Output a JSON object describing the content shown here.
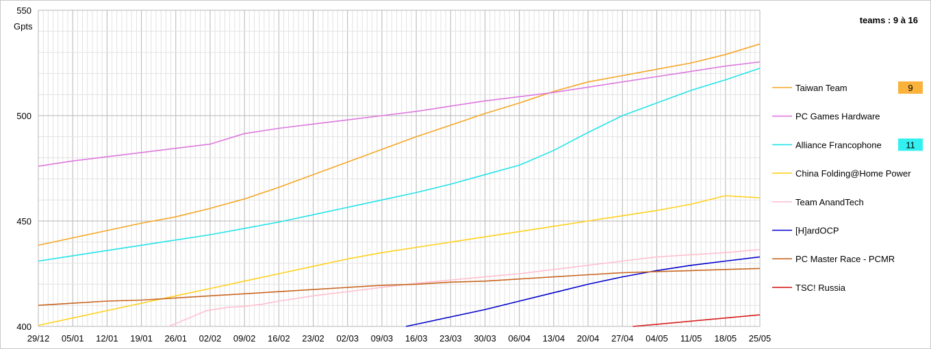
{
  "chart_data": {
    "type": "line",
    "title": "",
    "ylabel": "Gpts",
    "ylim": [
      400,
      550
    ],
    "yticks": [
      400,
      450,
      500,
      550
    ],
    "grid": true,
    "legend_position": "right",
    "x_tick_labels": [
      "29/12",
      "05/01",
      "12/01",
      "19/01",
      "26/01",
      "02/02",
      "09/02",
      "16/02",
      "23/02",
      "02/03",
      "09/03",
      "16/03",
      "23/03",
      "30/03",
      "06/04",
      "13/04",
      "20/04",
      "27/04",
      "04/05",
      "11/05",
      "18/05",
      "25/05"
    ],
    "ranking_label": "teams : 9 à 16",
    "series": [
      {
        "name": "Taiwan Team",
        "color": "#f5a623",
        "rank": "9",
        "badge_color": "#f9b23b",
        "x": [
          0,
          1,
          2,
          3,
          4,
          5,
          6,
          7,
          8,
          9,
          10,
          11,
          12,
          13,
          14,
          15,
          16,
          17,
          18,
          19,
          20,
          21
        ],
        "y": [
          438.5,
          442,
          445.5,
          449,
          452,
          456,
          460.5,
          466,
          472,
          478,
          484,
          490,
          495.5,
          501,
          506,
          511.5,
          516,
          519,
          522,
          525,
          529,
          534
        ]
      },
      {
        "name": "PC Games Hardware",
        "color": "#dd77dd",
        "x": [
          0,
          1,
          2,
          3,
          4,
          5,
          6,
          7,
          8,
          9,
          10,
          11,
          12,
          13,
          14,
          15,
          16,
          17,
          18,
          19,
          20,
          21
        ],
        "y": [
          476,
          478.5,
          480.5,
          482.5,
          484.5,
          486.5,
          491.5,
          494,
          496,
          498,
          500,
          502,
          504.5,
          507,
          509,
          511,
          513.5,
          516,
          518.5,
          521,
          523.5,
          525.5
        ]
      },
      {
        "name": "Alliance Francophone",
        "color": "#22e3e8",
        "rank": "11",
        "badge_color": "#33f0f0",
        "x": [
          0,
          1,
          2,
          3,
          4,
          5,
          6,
          7,
          8,
          9,
          10,
          11,
          12,
          13,
          14,
          15,
          16,
          17,
          18,
          19,
          20,
          21
        ],
        "y": [
          431,
          433.5,
          436,
          438.5,
          441,
          443.5,
          446.5,
          449.5,
          453,
          456.5,
          460,
          463.5,
          467.5,
          472,
          476.5,
          483.5,
          492,
          500,
          506,
          512,
          517,
          522.5
        ]
      },
      {
        "name": "China Folding@Home Power",
        "color": "#ffd11a",
        "x": [
          0,
          1,
          2,
          3,
          4,
          5,
          6,
          7,
          8,
          9,
          10,
          11,
          12,
          13,
          14,
          15,
          16,
          17,
          18,
          19,
          20,
          21
        ],
        "y": [
          400.5,
          404,
          407.5,
          411,
          414.5,
          418,
          421.5,
          425,
          428.5,
          432,
          435,
          437.5,
          440,
          442.5,
          445,
          447.5,
          450,
          452.5,
          455,
          458,
          462,
          461
        ]
      },
      {
        "name": "Team AnandTech",
        "color": "#ffbfcf",
        "x": [
          3.8,
          4.9,
          5.5,
          6,
          6.5,
          7,
          8,
          9,
          10,
          11,
          12,
          13,
          14,
          15,
          16,
          17,
          18,
          19,
          20,
          21
        ],
        "y": [
          400,
          407.5,
          409,
          409.5,
          410.5,
          412,
          414.5,
          416.5,
          418.5,
          420.5,
          422,
          423.5,
          425,
          427,
          429,
          431,
          433,
          434,
          435,
          436.5
        ]
      },
      {
        "name": "[H]ardOCP",
        "color": "#0000cc",
        "x": [
          10.7,
          11,
          12,
          13,
          14,
          15,
          16,
          17,
          18,
          19,
          20,
          21
        ],
        "y": [
          400,
          401,
          404.5,
          408,
          412,
          416,
          420,
          423.5,
          426.5,
          429,
          431,
          433
        ]
      },
      {
        "name": "PC Master Race - PCMR",
        "color": "#c8641e",
        "x": [
          0,
          1,
          2,
          3,
          4,
          5,
          6,
          7,
          8,
          9,
          10,
          11,
          12,
          13,
          14,
          15,
          16,
          17,
          18,
          19,
          20,
          21
        ],
        "y": [
          410,
          411,
          412,
          412.5,
          413.5,
          414.5,
          415.5,
          416.5,
          417.5,
          418.5,
          419.5,
          420,
          421,
          421.5,
          422.5,
          423.5,
          424.5,
          425.5,
          426,
          426.5,
          427,
          427.5
        ]
      },
      {
        "name": "TSC! Russia",
        "color": "#d91b1b",
        "x": [
          17.3,
          18,
          19,
          20,
          21
        ],
        "y": [
          400,
          401,
          402.5,
          404,
          405.5
        ]
      }
    ]
  }
}
